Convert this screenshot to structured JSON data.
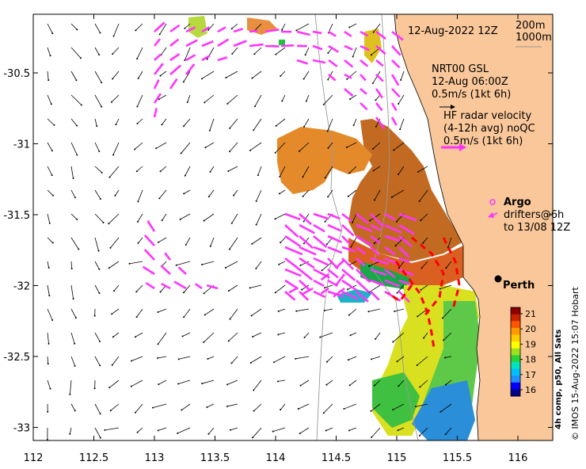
{
  "map": {
    "date_label": "12-Aug-2022 12Z",
    "isobath_labels": [
      "200m",
      "1000m"
    ],
    "city_label": "Perth",
    "lon_ticks": [
      "112",
      "112.5",
      "113",
      "113.5",
      "114",
      "114.5",
      "115",
      "115.5",
      "116"
    ],
    "lat_ticks": [
      "-30.5",
      "-31",
      "-31.5",
      "-32",
      "-32.5",
      "-33"
    ],
    "colors": {
      "land": "#f9c79a",
      "model_arrow": "#000000",
      "radar_arrow": "#ff33ff",
      "argo": "#ff33ff",
      "drifter": "#ff0000"
    }
  },
  "legend": {
    "model": {
      "line1": "NRT00 GSL",
      "line2": "12-Aug 06:00Z",
      "line3": "0.5m/s (1kt 6h)"
    },
    "radar": {
      "line1": "HF radar velocity",
      "line2": "(4-12h avg) noQC",
      "line3": "0.5m/s (1kt 6h)"
    },
    "argo_label": "Argo",
    "drifters": {
      "line1": "drifters@6h",
      "line2": "to 13/08 12Z"
    }
  },
  "colorbar": {
    "ticks": [
      "16",
      "17",
      "18",
      "19",
      "20",
      "21"
    ],
    "label": "4h comp, p50, All Sats"
  },
  "credit": "© IMOS 15-Aug-2022 15:07 Hobart"
}
